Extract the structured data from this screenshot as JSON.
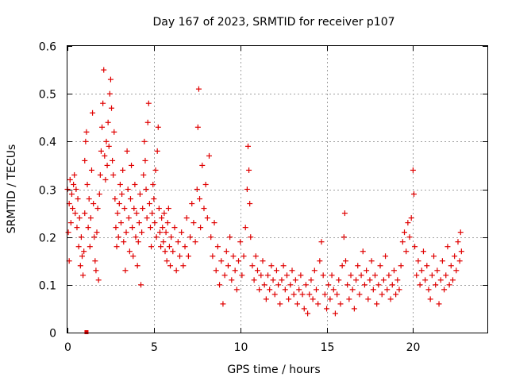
{
  "chart_data": {
    "type": "scatter",
    "title": "Day 167 of 2023, SRMTID for receiver p107",
    "xlabel": "GPS time / hours",
    "ylabel": "SRMTID / TECUs",
    "xlim": [
      0,
      24.3
    ],
    "ylim": [
      0,
      0.6
    ],
    "xticks": [
      0,
      5,
      10,
      15,
      20
    ],
    "xtick_labels": [
      "0",
      "5",
      "10",
      "15",
      "20"
    ],
    "yticks": [
      0,
      0.1,
      0.2,
      0.3,
      0.4,
      0.5,
      0.6
    ],
    "ytick_labels": [
      "0",
      "0.1",
      "0.2",
      "0.3",
      "0.4",
      "0.5",
      "0.6"
    ],
    "grid": true,
    "marker": "+",
    "color": "#e00000",
    "series": [
      {
        "name": "p107",
        "points": [
          [
            0.0,
            0.3
          ],
          [
            0.05,
            0.21
          ],
          [
            0.1,
            0.15
          ],
          [
            0.1,
            0.27
          ],
          [
            0.15,
            0.32
          ],
          [
            0.2,
            0.23
          ],
          [
            0.25,
            0.29
          ],
          [
            0.3,
            0.26
          ],
          [
            0.35,
            0.31
          ],
          [
            0.4,
            0.33
          ],
          [
            0.45,
            0.25
          ],
          [
            0.5,
            0.3
          ],
          [
            0.55,
            0.22
          ],
          [
            0.6,
            0.28
          ],
          [
            0.65,
            0.18
          ],
          [
            0.7,
            0.24
          ],
          [
            0.75,
            0.14
          ],
          [
            0.8,
            0.2
          ],
          [
            0.85,
            0.16
          ],
          [
            0.9,
            0.12
          ],
          [
            0.95,
            0.17
          ],
          [
            1.0,
            0.25
          ],
          [
            1.0,
            0.36
          ],
          [
            1.05,
            0.4
          ],
          [
            1.1,
            0.42
          ],
          [
            1.15,
            0.31
          ],
          [
            1.2,
            0.22
          ],
          [
            1.25,
            0.28
          ],
          [
            1.3,
            0.18
          ],
          [
            1.35,
            0.24
          ],
          [
            1.4,
            0.34
          ],
          [
            1.45,
            0.46
          ],
          [
            1.5,
            0.27
          ],
          [
            1.55,
            0.2
          ],
          [
            1.6,
            0.15
          ],
          [
            1.65,
            0.13
          ],
          [
            1.7,
            0.21
          ],
          [
            1.75,
            0.26
          ],
          [
            1.8,
            0.11
          ],
          [
            1.85,
            0.29
          ],
          [
            1.9,
            0.33
          ],
          [
            1.95,
            0.38
          ],
          [
            2.0,
            0.43
          ],
          [
            2.05,
            0.48
          ],
          [
            2.1,
            0.55
          ],
          [
            2.15,
            0.37
          ],
          [
            2.2,
            0.32
          ],
          [
            2.25,
            0.4
          ],
          [
            2.3,
            0.35
          ],
          [
            2.35,
            0.44
          ],
          [
            2.4,
            0.39
          ],
          [
            2.45,
            0.5
          ],
          [
            2.5,
            0.53
          ],
          [
            2.55,
            0.47
          ],
          [
            2.6,
            0.36
          ],
          [
            2.65,
            0.33
          ],
          [
            2.7,
            0.42
          ],
          [
            2.75,
            0.28
          ],
          [
            2.8,
            0.22
          ],
          [
            2.85,
            0.18
          ],
          [
            2.9,
            0.25
          ],
          [
            2.95,
            0.2
          ],
          [
            3.0,
            0.27
          ],
          [
            3.05,
            0.31
          ],
          [
            3.1,
            0.23
          ],
          [
            3.15,
            0.29
          ],
          [
            3.2,
            0.34
          ],
          [
            3.25,
            0.19
          ],
          [
            3.3,
            0.26
          ],
          [
            3.35,
            0.13
          ],
          [
            3.4,
            0.21
          ],
          [
            3.45,
            0.38
          ],
          [
            3.5,
            0.3
          ],
          [
            3.55,
            0.24
          ],
          [
            3.6,
            0.17
          ],
          [
            3.65,
            0.28
          ],
          [
            3.7,
            0.35
          ],
          [
            3.75,
            0.22
          ],
          [
            3.8,
            0.16
          ],
          [
            3.85,
            0.26
          ],
          [
            3.9,
            0.31
          ],
          [
            3.95,
            0.2
          ],
          [
            4.0,
            0.25
          ],
          [
            4.05,
            0.14
          ],
          [
            4.1,
            0.19
          ],
          [
            4.15,
            0.23
          ],
          [
            4.2,
            0.29
          ],
          [
            4.25,
            0.1
          ],
          [
            4.3,
            0.21
          ],
          [
            4.35,
            0.26
          ],
          [
            4.4,
            0.33
          ],
          [
            4.45,
            0.4
          ],
          [
            4.5,
            0.36
          ],
          [
            4.55,
            0.3
          ],
          [
            4.6,
            0.24
          ],
          [
            4.65,
            0.44
          ],
          [
            4.7,
            0.48
          ],
          [
            4.75,
            0.27
          ],
          [
            4.8,
            0.22
          ],
          [
            4.85,
            0.18
          ],
          [
            4.9,
            0.25
          ],
          [
            4.95,
            0.31
          ],
          [
            5.0,
            0.28
          ],
          [
            5.05,
            0.23
          ],
          [
            5.1,
            0.34
          ],
          [
            5.15,
            0.2
          ],
          [
            5.2,
            0.38
          ],
          [
            5.25,
            0.43
          ],
          [
            5.3,
            0.26
          ],
          [
            5.35,
            0.21
          ],
          [
            5.4,
            0.18
          ],
          [
            5.45,
            0.24
          ],
          [
            5.5,
            0.22
          ],
          [
            5.55,
            0.19
          ],
          [
            5.6,
            0.25
          ],
          [
            5.65,
            0.17
          ],
          [
            5.7,
            0.21
          ],
          [
            5.75,
            0.15
          ],
          [
            5.8,
            0.23
          ],
          [
            5.85,
            0.26
          ],
          [
            5.9,
            0.18
          ],
          [
            5.95,
            0.14
          ],
          [
            6.0,
            0.2
          ],
          [
            6.1,
            0.17
          ],
          [
            6.2,
            0.22
          ],
          [
            6.3,
            0.13
          ],
          [
            6.4,
            0.19
          ],
          [
            6.5,
            0.16
          ],
          [
            6.6,
            0.21
          ],
          [
            6.7,
            0.14
          ],
          [
            6.8,
            0.18
          ],
          [
            6.9,
            0.24
          ],
          [
            7.0,
            0.16
          ],
          [
            7.1,
            0.2
          ],
          [
            7.2,
            0.27
          ],
          [
            7.3,
            0.23
          ],
          [
            7.4,
            0.19
          ],
          [
            7.5,
            0.3
          ],
          [
            7.55,
            0.43
          ],
          [
            7.6,
            0.51
          ],
          [
            7.65,
            0.28
          ],
          [
            7.7,
            0.22
          ],
          [
            7.8,
            0.35
          ],
          [
            7.9,
            0.26
          ],
          [
            8.0,
            0.31
          ],
          [
            8.1,
            0.24
          ],
          [
            8.2,
            0.37
          ],
          [
            8.3,
            0.2
          ],
          [
            8.4,
            0.16
          ],
          [
            8.5,
            0.23
          ],
          [
            8.6,
            0.13
          ],
          [
            8.7,
            0.18
          ],
          [
            8.8,
            0.1
          ],
          [
            8.9,
            0.15
          ],
          [
            9.0,
            0.06
          ],
          [
            9.1,
            0.12
          ],
          [
            9.2,
            0.17
          ],
          [
            9.3,
            0.14
          ],
          [
            9.4,
            0.2
          ],
          [
            9.5,
            0.11
          ],
          [
            9.6,
            0.16
          ],
          [
            9.7,
            0.13
          ],
          [
            9.8,
            0.09
          ],
          [
            9.9,
            0.15
          ],
          [
            10.0,
            0.19
          ],
          [
            10.1,
            0.12
          ],
          [
            10.2,
            0.16
          ],
          [
            10.3,
            0.22
          ],
          [
            10.4,
            0.3
          ],
          [
            10.45,
            0.39
          ],
          [
            10.5,
            0.34
          ],
          [
            10.55,
            0.27
          ],
          [
            10.6,
            0.2
          ],
          [
            10.7,
            0.14
          ],
          [
            10.8,
            0.11
          ],
          [
            10.9,
            0.16
          ],
          [
            11.0,
            0.13
          ],
          [
            11.1,
            0.09
          ],
          [
            11.2,
            0.12
          ],
          [
            11.3,
            0.15
          ],
          [
            11.4,
            0.1
          ],
          [
            11.5,
            0.07
          ],
          [
            11.6,
            0.12
          ],
          [
            11.7,
            0.09
          ],
          [
            11.8,
            0.14
          ],
          [
            11.9,
            0.11
          ],
          [
            12.0,
            0.08
          ],
          [
            12.1,
            0.13
          ],
          [
            12.2,
            0.1
          ],
          [
            12.3,
            0.06
          ],
          [
            12.4,
            0.11
          ],
          [
            12.5,
            0.14
          ],
          [
            12.6,
            0.09
          ],
          [
            12.7,
            0.12
          ],
          [
            12.8,
            0.07
          ],
          [
            12.9,
            0.1
          ],
          [
            13.0,
            0.13
          ],
          [
            13.1,
            0.08
          ],
          [
            13.2,
            0.11
          ],
          [
            13.3,
            0.06
          ],
          [
            13.4,
            0.09
          ],
          [
            13.5,
            0.12
          ],
          [
            13.6,
            0.08
          ],
          [
            13.7,
            0.05
          ],
          [
            13.8,
            0.1
          ],
          [
            13.9,
            0.04
          ],
          [
            14.0,
            0.08
          ],
          [
            14.1,
            0.11
          ],
          [
            14.2,
            0.07
          ],
          [
            14.3,
            0.13
          ],
          [
            14.4,
            0.09
          ],
          [
            14.5,
            0.06
          ],
          [
            14.6,
            0.15
          ],
          [
            14.7,
            0.19
          ],
          [
            14.8,
            0.12
          ],
          [
            14.9,
            0.08
          ],
          [
            15.0,
            0.05
          ],
          [
            15.1,
            0.1
          ],
          [
            15.2,
            0.07
          ],
          [
            15.3,
            0.12
          ],
          [
            15.4,
            0.09
          ],
          [
            15.5,
            0.04
          ],
          [
            15.6,
            0.08
          ],
          [
            15.7,
            0.11
          ],
          [
            15.8,
            0.06
          ],
          [
            15.9,
            0.14
          ],
          [
            16.0,
            0.2
          ],
          [
            16.05,
            0.25
          ],
          [
            16.1,
            0.15
          ],
          [
            16.2,
            0.1
          ],
          [
            16.3,
            0.07
          ],
          [
            16.4,
            0.12
          ],
          [
            16.5,
            0.09
          ],
          [
            16.6,
            0.05
          ],
          [
            16.7,
            0.11
          ],
          [
            16.8,
            0.14
          ],
          [
            16.9,
            0.08
          ],
          [
            17.0,
            0.12
          ],
          [
            17.1,
            0.17
          ],
          [
            17.2,
            0.1
          ],
          [
            17.3,
            0.13
          ],
          [
            17.4,
            0.07
          ],
          [
            17.5,
            0.11
          ],
          [
            17.6,
            0.15
          ],
          [
            17.7,
            0.09
          ],
          [
            17.8,
            0.12
          ],
          [
            17.9,
            0.06
          ],
          [
            18.0,
            0.1
          ],
          [
            18.1,
            0.14
          ],
          [
            18.2,
            0.08
          ],
          [
            18.3,
            0.11
          ],
          [
            18.4,
            0.16
          ],
          [
            18.5,
            0.09
          ],
          [
            18.6,
            0.12
          ],
          [
            18.7,
            0.07
          ],
          [
            18.8,
            0.1
          ],
          [
            18.9,
            0.13
          ],
          [
            19.0,
            0.08
          ],
          [
            19.1,
            0.11
          ],
          [
            19.2,
            0.09
          ],
          [
            19.3,
            0.14
          ],
          [
            19.4,
            0.19
          ],
          [
            19.5,
            0.21
          ],
          [
            19.6,
            0.17
          ],
          [
            19.7,
            0.23
          ],
          [
            19.8,
            0.2
          ],
          [
            19.9,
            0.24
          ],
          [
            20.0,
            0.34
          ],
          [
            20.05,
            0.29
          ],
          [
            20.1,
            0.18
          ],
          [
            20.2,
            0.12
          ],
          [
            20.3,
            0.15
          ],
          [
            20.4,
            0.1
          ],
          [
            20.5,
            0.13
          ],
          [
            20.6,
            0.17
          ],
          [
            20.7,
            0.11
          ],
          [
            20.8,
            0.14
          ],
          [
            20.9,
            0.09
          ],
          [
            21.0,
            0.07
          ],
          [
            21.1,
            0.12
          ],
          [
            21.2,
            0.16
          ],
          [
            21.3,
            0.1
          ],
          [
            21.4,
            0.13
          ],
          [
            21.5,
            0.06
          ],
          [
            21.6,
            0.11
          ],
          [
            21.7,
            0.15
          ],
          [
            21.8,
            0.09
          ],
          [
            21.9,
            0.12
          ],
          [
            22.0,
            0.18
          ],
          [
            22.1,
            0.1
          ],
          [
            22.2,
            0.14
          ],
          [
            22.3,
            0.11
          ],
          [
            22.4,
            0.16
          ],
          [
            22.5,
            0.13
          ],
          [
            22.6,
            0.19
          ],
          [
            22.7,
            0.15
          ],
          [
            22.75,
            0.21
          ],
          [
            22.8,
            0.17
          ]
        ]
      }
    ],
    "outlier_marker": {
      "x": 1.1,
      "y": 0.0,
      "shape": "square"
    }
  }
}
